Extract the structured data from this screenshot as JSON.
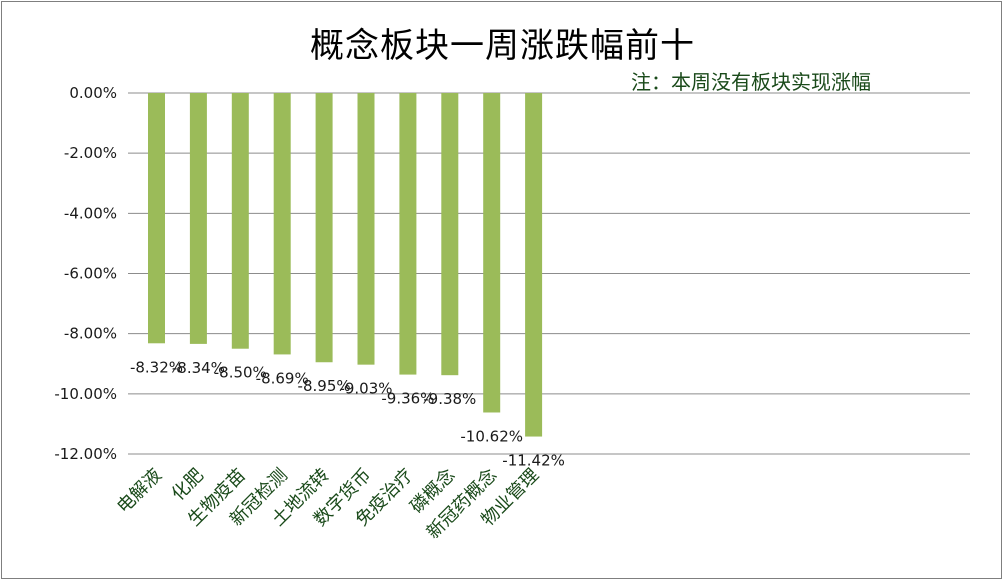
{
  "chart_data": {
    "type": "bar",
    "title": "概念板块一周涨跌幅前十",
    "note": "注：本周没有板块实现涨幅",
    "categories": [
      "电解液",
      "化肥",
      "生物疫苗",
      "新冠检测",
      "土地流转",
      "数字货币",
      "免疫治疗",
      "磷概念",
      "新冠药概念",
      "物业管理"
    ],
    "values": [
      -8.32,
      -8.34,
      -8.5,
      -8.69,
      -8.95,
      -9.03,
      -9.36,
      -9.38,
      -10.62,
      -11.42
    ],
    "data_labels": [
      "-8.32%",
      "-8.34%",
      "-8.50%",
      "-8.69%",
      "-8.95%",
      "-9.03%",
      "-9.36%",
      "-9.38%",
      "-10.62%",
      "-11.42%"
    ],
    "yticks": [
      "0.00%",
      "-2.00%",
      "-4.00%",
      "-6.00%",
      "-8.00%",
      "-10.00%",
      "-12.00%"
    ],
    "ylim": [
      -12,
      0
    ],
    "grid": true,
    "bar_color": "#9bbb59",
    "xlabel": "",
    "ylabel": ""
  }
}
